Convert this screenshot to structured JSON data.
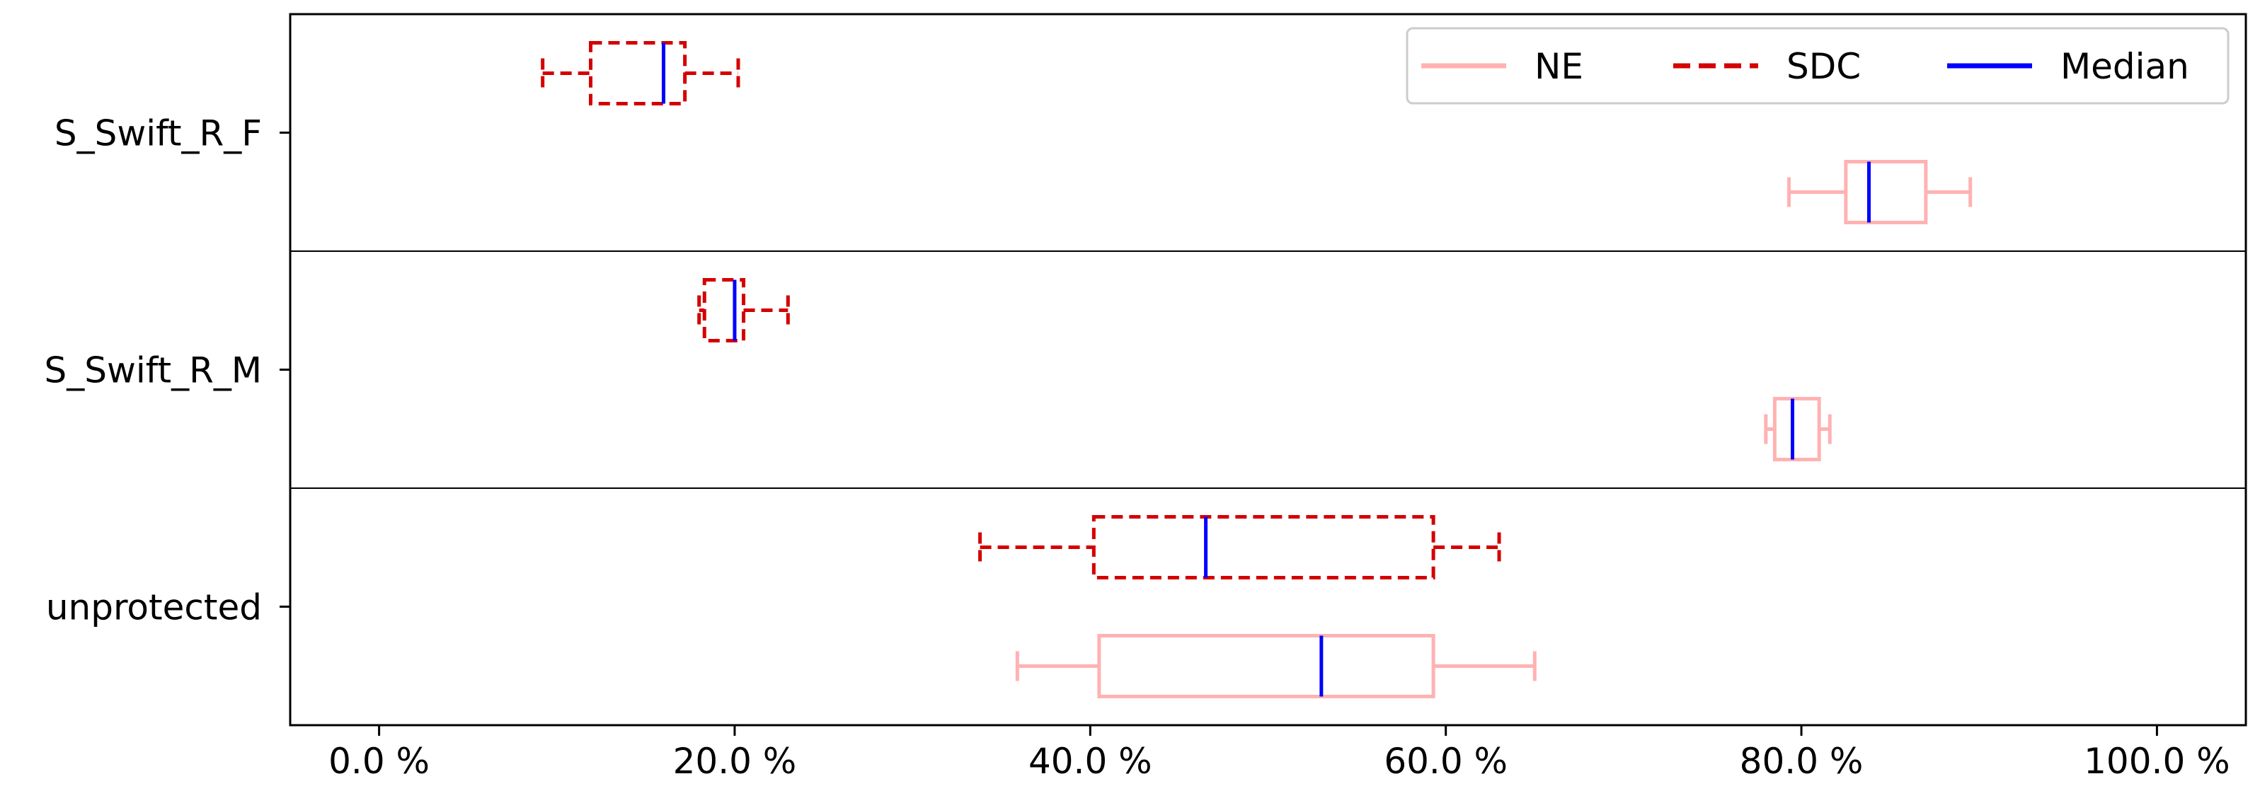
{
  "chart_data": {
    "type": "boxplot",
    "orientation": "horizontal",
    "title": "",
    "xlabel": "",
    "ylabel": "",
    "xlim": [
      -5,
      105
    ],
    "x_ticks": [
      0,
      20,
      40,
      60,
      80,
      100
    ],
    "x_tick_labels": [
      "0.0 %",
      "20.0 %",
      "40.0 %",
      "60.0 %",
      "80.0 %",
      "100.0 %"
    ],
    "categories": [
      "S_Swift_R_F",
      "S_Swift_R_M",
      "unprotected"
    ],
    "legend": {
      "placement": "top-right",
      "entries": [
        {
          "label": "NE",
          "color": "#ffb2b2",
          "style": "solid"
        },
        {
          "label": "SDC",
          "color": "#d40000",
          "style": "dashed"
        },
        {
          "label": "Median",
          "color": "#0000ff",
          "style": "solid"
        }
      ]
    },
    "series": [
      {
        "name": "SDC",
        "color": "#d40000",
        "style": "dashed",
        "boxes": [
          {
            "category": "S_Swift_R_F",
            "whislo": 9.2,
            "q1": 11.9,
            "med": 16.0,
            "q3": 17.2,
            "whishi": 20.2
          },
          {
            "category": "S_Swift_R_M",
            "whislo": 18.0,
            "q1": 18.3,
            "med": 20.0,
            "q3": 20.5,
            "whishi": 23.0
          },
          {
            "category": "unprotected",
            "whislo": 33.8,
            "q1": 40.2,
            "med": 46.5,
            "q3": 59.3,
            "whishi": 63.0
          }
        ]
      },
      {
        "name": "NE",
        "color": "#ffb2b2",
        "style": "solid",
        "boxes": [
          {
            "category": "S_Swift_R_F",
            "whislo": 79.3,
            "q1": 82.5,
            "med": 83.8,
            "q3": 87.0,
            "whishi": 89.5
          },
          {
            "category": "S_Swift_R_M",
            "whislo": 78.0,
            "q1": 78.5,
            "med": 79.5,
            "q3": 81.0,
            "whishi": 81.6
          },
          {
            "category": "unprotected",
            "whislo": 35.9,
            "q1": 40.5,
            "med": 53.0,
            "q3": 59.3,
            "whishi": 65.0
          }
        ]
      }
    ],
    "median_color": "#0000ff",
    "grid": false
  }
}
